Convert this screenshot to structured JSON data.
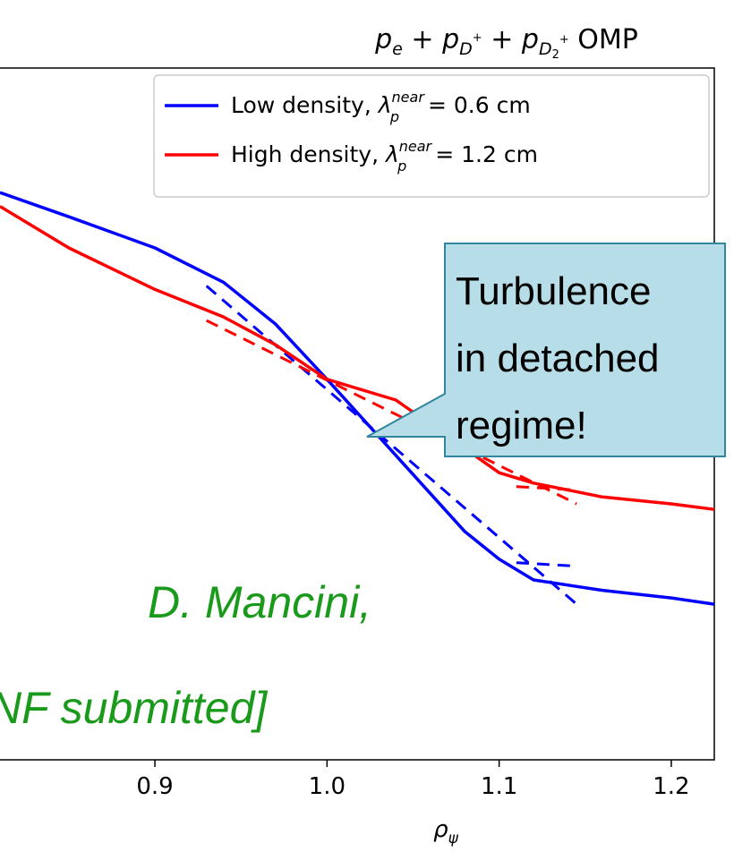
{
  "chart_data": {
    "type": "line",
    "title": "p_e + p_D+ + p_D2+ OMP",
    "xlabel": "ρ_ψ",
    "ylabel": "",
    "xlim": [
      0.81,
      1.225
    ],
    "ylim": [
      0,
      1
    ],
    "grid": false,
    "legend_position": "top-right",
    "x_ticks": [
      0.9,
      1.0,
      1.1,
      1.2
    ],
    "x_tick_labels": [
      "0.9",
      "1.0",
      "1.1",
      "1.2"
    ],
    "series": [
      {
        "name": "Low density, λ_p^near = 0.6 cm",
        "legend_main": "Low density, ",
        "legend_symbol": "λ",
        "legend_sup": "near",
        "legend_sub": "p",
        "legend_tail": " = 0.6 cm",
        "color": "#0000ff",
        "x": [
          0.81,
          0.85,
          0.9,
          0.94,
          0.97,
          1.0,
          1.04,
          1.08,
          1.1,
          1.12,
          1.16,
          1.2,
          1.225
        ],
        "y": [
          0.82,
          0.785,
          0.74,
          0.69,
          0.63,
          0.55,
          0.44,
          0.33,
          0.29,
          0.26,
          0.245,
          0.234,
          0.225
        ]
      },
      {
        "name": "High density, λ_p^near = 1.2 cm",
        "legend_main": "High density, ",
        "legend_symbol": "λ",
        "legend_sup": "near",
        "legend_sub": "p",
        "legend_tail": " = 1.2 cm",
        "color": "#ff0000",
        "x": [
          0.81,
          0.85,
          0.9,
          0.94,
          0.97,
          1.0,
          1.04,
          1.08,
          1.1,
          1.12,
          1.16,
          1.2,
          1.225
        ],
        "y": [
          0.8,
          0.74,
          0.68,
          0.64,
          0.6,
          0.55,
          0.52,
          0.45,
          0.415,
          0.4,
          0.38,
          0.37,
          0.362
        ]
      }
    ],
    "fit_lines": [
      {
        "color": "#0000ff",
        "x": [
          0.93,
          1.145
        ],
        "y": [
          0.685,
          0.225
        ]
      },
      {
        "color": "#0000ff",
        "x": [
          1.11,
          1.145
        ],
        "y": [
          0.285,
          0.28
        ]
      },
      {
        "color": "#ff0000",
        "x": [
          0.93,
          1.145
        ],
        "y": [
          0.635,
          0.37
        ]
      },
      {
        "color": "#ff0000",
        "x": [
          1.11,
          1.145
        ],
        "y": [
          0.395,
          0.39
        ]
      }
    ],
    "callout_text": [
      "Turbulence",
      "in detached",
      "regime!"
    ],
    "annotation_text": [
      "D. Mancini,",
      "NF submitted]"
    ]
  },
  "colors": {
    "callout_fill": "#b7dde8",
    "callout_stroke": "#31859c",
    "annotation": "#1a9a1a"
  }
}
